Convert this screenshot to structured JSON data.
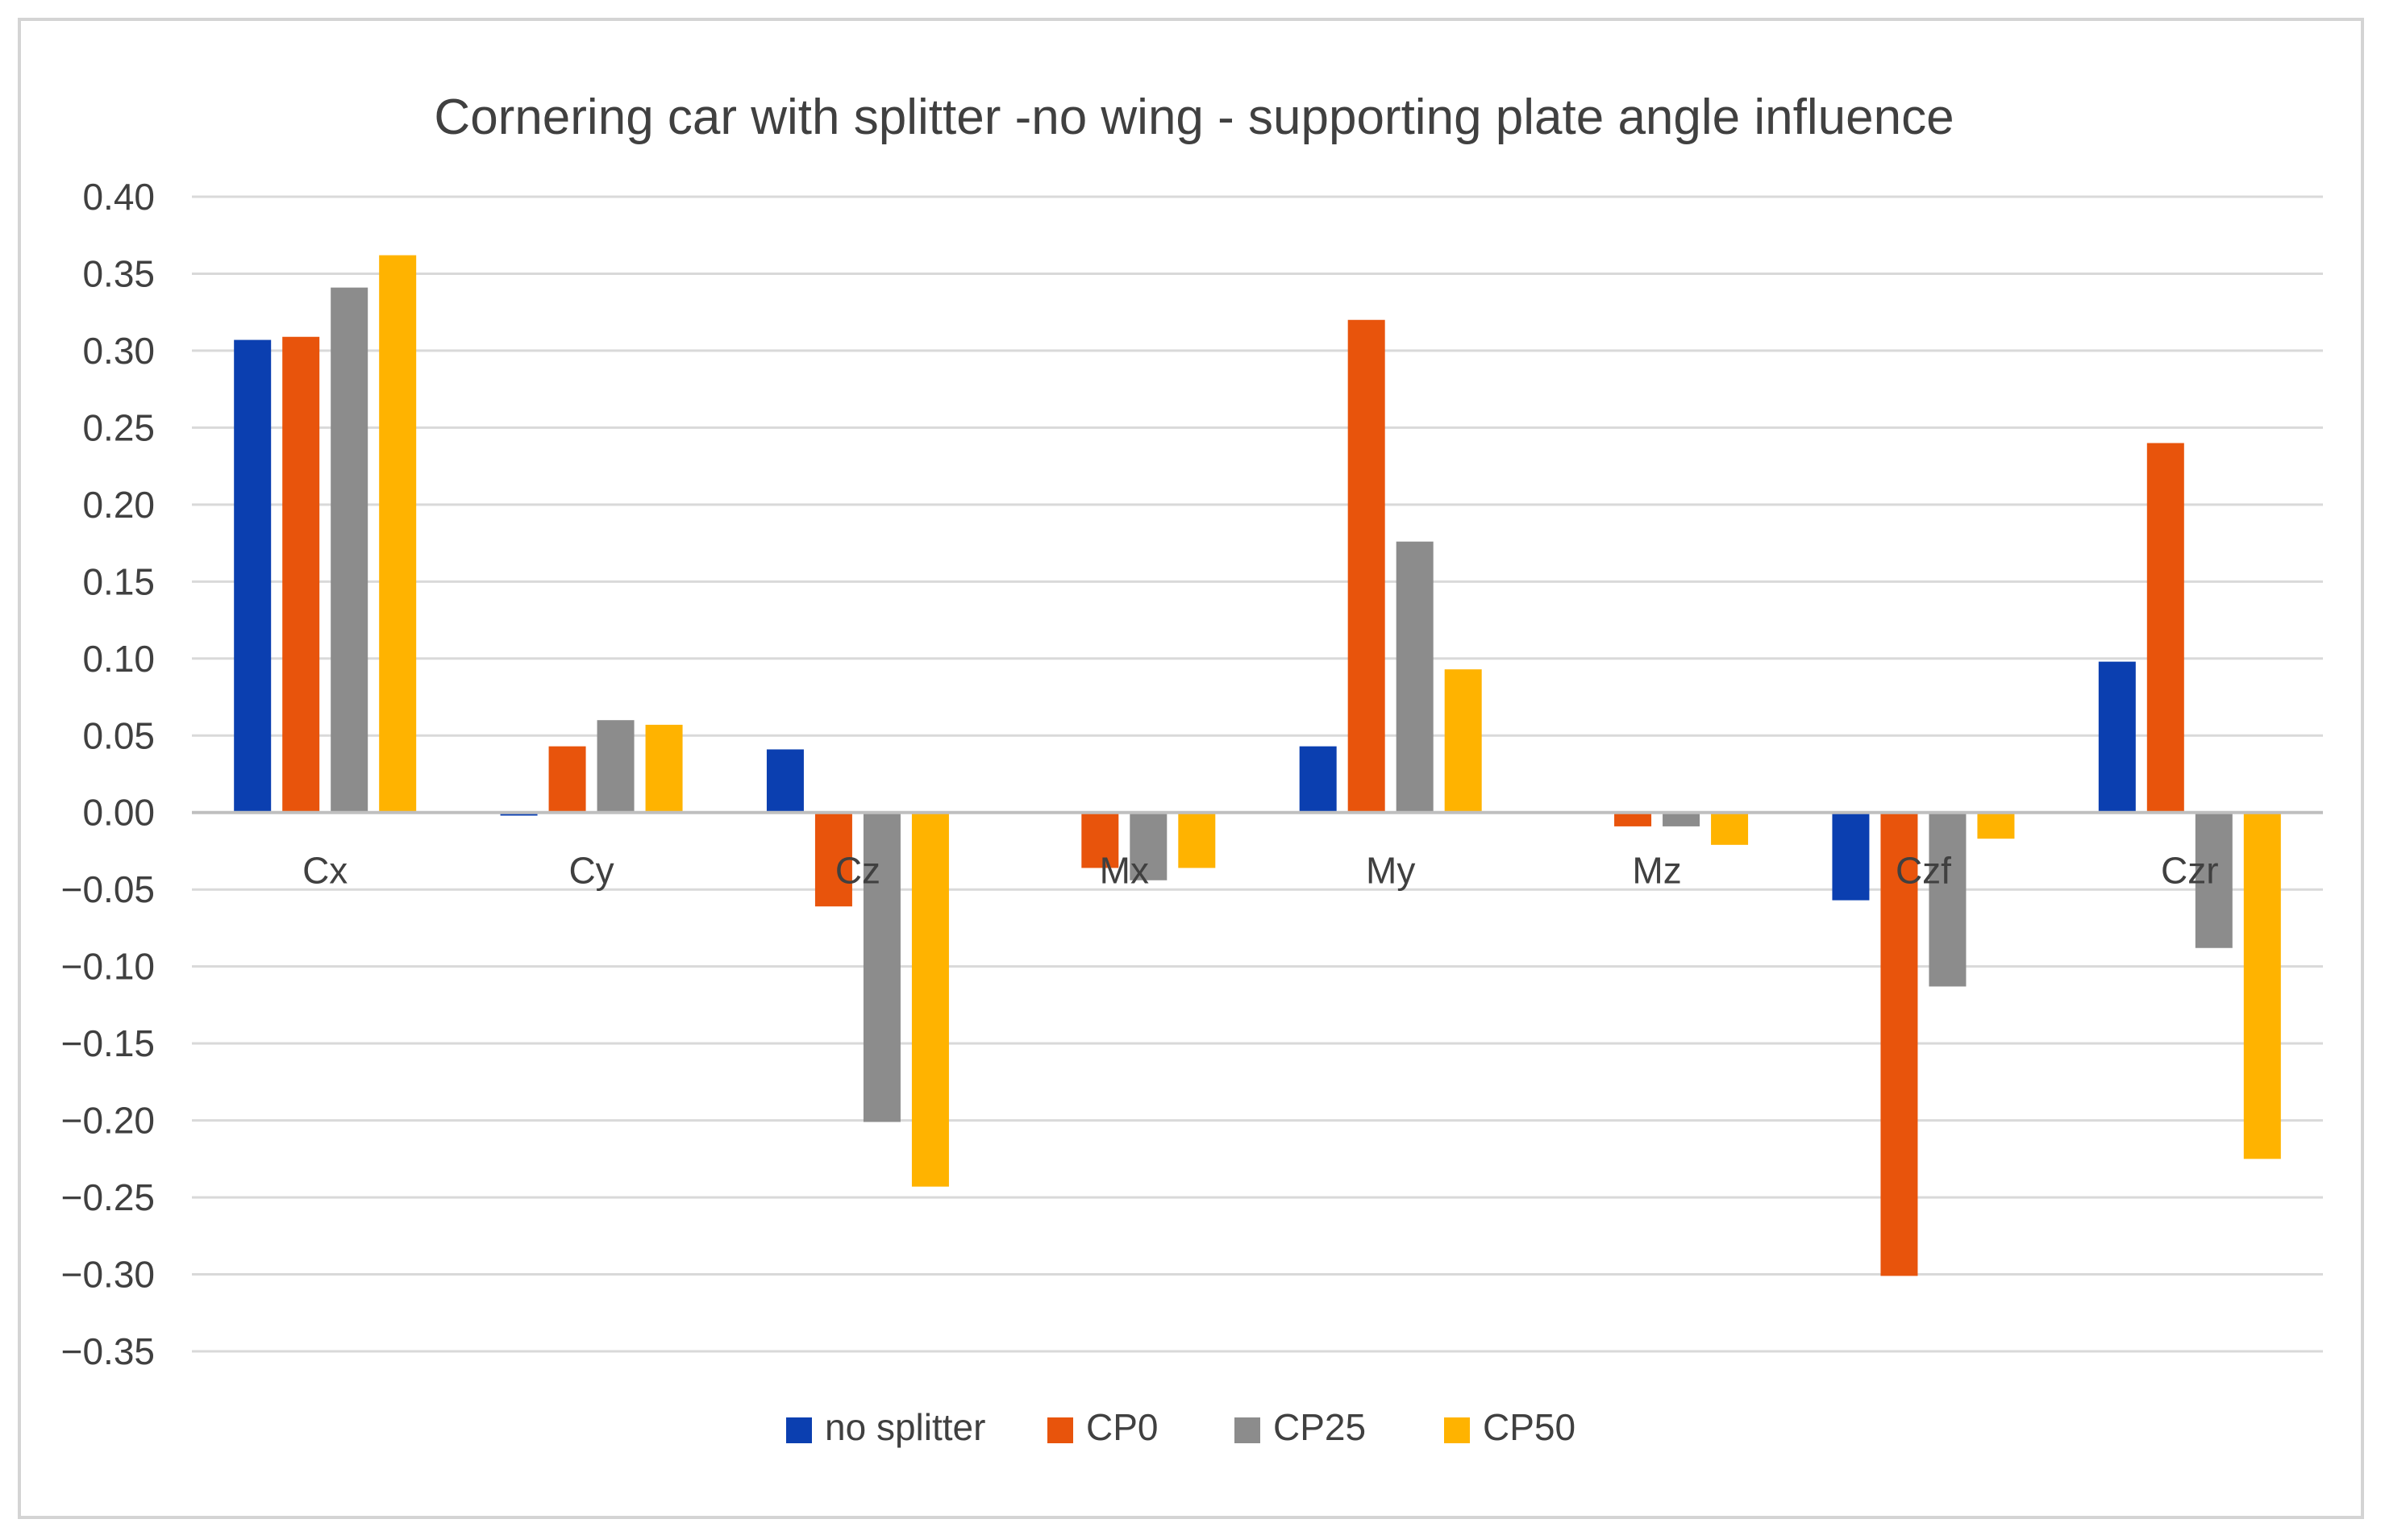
{
  "chart_data": {
    "type": "bar",
    "title": "Cornering car with splitter -no wing - supporting plate angle influence",
    "xlabel": "",
    "ylabel": "",
    "categories": [
      "Cx",
      "Cy",
      "Cz",
      "Mx",
      "My",
      "Mz",
      "Czf",
      "Czr"
    ],
    "series": [
      {
        "name": "no splitter",
        "color": "#0b3fb0",
        "values": [
          0.307,
          -0.002,
          0.041,
          0.0,
          0.043,
          0.0,
          -0.057,
          0.098
        ]
      },
      {
        "name": "CP0",
        "color": "#e8540c",
        "values": [
          0.309,
          0.043,
          -0.061,
          -0.036,
          0.32,
          -0.009,
          -0.301,
          0.24
        ]
      },
      {
        "name": "CP25",
        "color": "#8c8c8c",
        "values": [
          0.341,
          0.06,
          -0.201,
          -0.044,
          0.176,
          -0.009,
          -0.113,
          -0.088
        ]
      },
      {
        "name": "CP50",
        "color": "#ffb300",
        "values": [
          0.362,
          0.057,
          -0.243,
          -0.036,
          0.093,
          -0.021,
          -0.017,
          -0.225
        ]
      }
    ],
    "ylim": [
      -0.35,
      0.4
    ],
    "ytick_step": 0.05,
    "ytick_labels": [
      "0.40",
      "0.35",
      "0.30",
      "0.25",
      "0.20",
      "0.15",
      "0.10",
      "0.05",
      "0.00",
      "−0.05",
      "−0.10",
      "−0.15",
      "−0.20",
      "−0.25",
      "−0.30",
      "−0.35"
    ],
    "grid": true,
    "legend_position": "bottom-center"
  }
}
